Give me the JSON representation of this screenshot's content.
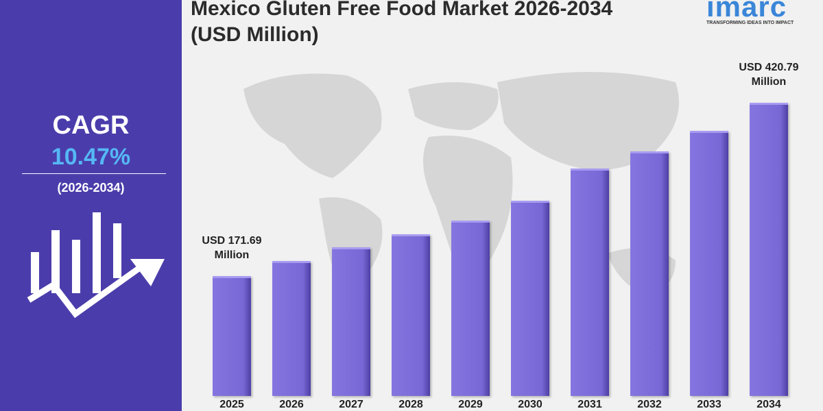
{
  "chart_data": {
    "type": "bar",
    "title": "Mexico Gluten Free Food Market 2026-2034 (USD Million)",
    "logo": "imarc",
    "tagline": "TRANSFORMING IDEAS INTO IMPACT",
    "cagr_label": "CAGR",
    "cagr_value": "10.47%",
    "cagr_period": "(2026-2034)",
    "categories": [
      "2025",
      "2026",
      "2027",
      "2028",
      "2029",
      "2030",
      "2031",
      "2032",
      "2033",
      "2034"
    ],
    "values": [
      171.69,
      194,
      213,
      232,
      252,
      280,
      326,
      351,
      380,
      420.79
    ],
    "value_labels": [
      "USD 171.69 Million",
      null,
      null,
      null,
      null,
      null,
      null,
      null,
      null,
      "USD 420.79 Million"
    ],
    "color": "#7868d6"
  }
}
